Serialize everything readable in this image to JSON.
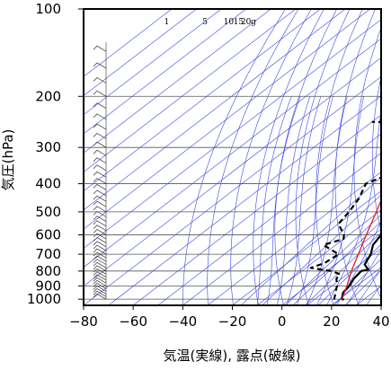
{
  "chart_data": {
    "type": "line",
    "title": "",
    "xlabel": "気温(実線), 露点(破線)",
    "ylabel": "気圧(hPa)",
    "x_axis": {
      "min": -80,
      "max": 40,
      "ticks": [
        -80,
        -60,
        -40,
        -20,
        0,
        20,
        40
      ],
      "tick_labels": [
        "−80",
        "−60",
        "−40",
        "−20",
        "0",
        "20",
        "40"
      ]
    },
    "y_axis": {
      "scale": "log",
      "min": 100,
      "max": 1050,
      "ticks": [
        100,
        200,
        300,
        400,
        500,
        600,
        700,
        800,
        900,
        1000
      ],
      "tick_labels": [
        "100",
        "200",
        "300",
        "400",
        "500",
        "600",
        "700",
        "800",
        "900",
        "1000"
      ]
    },
    "mixing_ratio_labels": [
      "1",
      "5",
      "10",
      "15",
      "20",
      "g"
    ],
    "series": [
      {
        "style": "solid",
        "color": "#000000",
        "points": [
          [
            1003,
            22
          ],
          [
            1000,
            21
          ],
          [
            950,
            18
          ],
          [
            900,
            17
          ],
          [
            850,
            15
          ],
          [
            800,
            14
          ],
          [
            790,
            16
          ],
          [
            760,
            12
          ],
          [
            700,
            9
          ],
          [
            650,
            5
          ],
          [
            600,
            3
          ],
          [
            550,
            0
          ],
          [
            500,
            -4
          ],
          [
            450,
            -8
          ],
          [
            400,
            -12
          ],
          [
            350,
            -18
          ],
          [
            300,
            -24
          ],
          [
            250,
            -31
          ],
          [
            200,
            -39
          ],
          [
            170,
            -45
          ],
          [
            150,
            -49
          ],
          [
            140,
            -52
          ],
          [
            130,
            -55
          ],
          [
            120,
            -58
          ],
          [
            110,
            -63
          ],
          [
            105,
            -65
          ],
          [
            100,
            -67
          ]
        ]
      },
      {
        "style": "dashed",
        "color": "#000000",
        "points": [
          [
            1003,
            18
          ],
          [
            950,
            15
          ],
          [
            900,
            12
          ],
          [
            850,
            8
          ],
          [
            820,
            7
          ],
          [
            800,
            2
          ],
          [
            780,
            -8
          ],
          [
            750,
            -5
          ],
          [
            700,
            -4
          ],
          [
            650,
            -15
          ],
          [
            620,
            -10
          ],
          [
            600,
            -12
          ],
          [
            550,
            -20
          ],
          [
            500,
            -22
          ],
          [
            450,
            -25
          ],
          [
            400,
            -30
          ],
          [
            380,
            -27
          ],
          [
            330,
            -33
          ],
          [
            300,
            -36
          ],
          [
            280,
            -39
          ],
          [
            250,
            -43
          ],
          [
            245,
            -51
          ],
          [
            245,
            -60
          ]
        ]
      },
      {
        "style": "solid",
        "color": "#e8181e",
        "points": [
          [
            1000,
            21
          ],
          [
            900,
            16
          ],
          [
            800,
            10
          ],
          [
            700,
            4
          ],
          [
            600,
            -3
          ],
          [
            500,
            -11
          ],
          [
            400,
            -21
          ],
          [
            300,
            -34
          ],
          [
            200,
            -52
          ],
          [
            150,
            -62
          ],
          [
            120,
            -73
          ]
        ]
      }
    ],
    "grid": true,
    "background_lines": [
      "isotherms (skewed)",
      "dry adiabats",
      "moist adiabats",
      "mixing-ratio lines"
    ]
  }
}
